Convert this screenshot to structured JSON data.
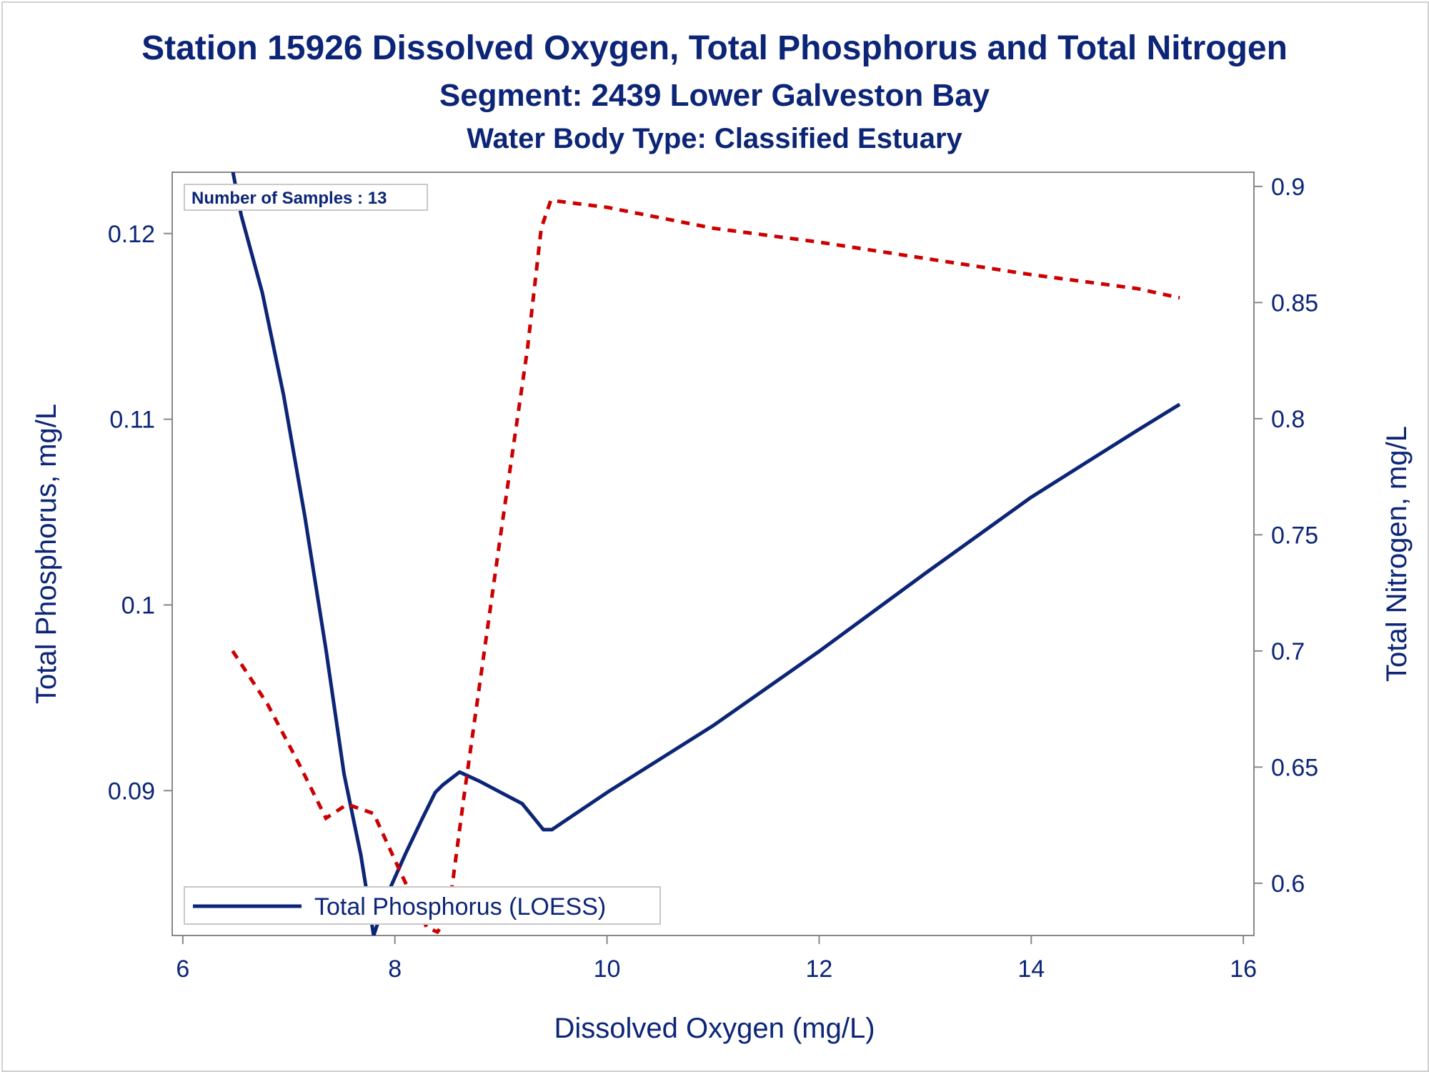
{
  "titles": {
    "line1": "Station 15926  Dissolved Oxygen, Total Phosphorus and Total Nitrogen",
    "line2": "Segment: 2439  Lower Galveston Bay",
    "line3": "Water Body Type: Classified Estuary"
  },
  "inset_label": "Number of Samples : 13",
  "colors": {
    "phosphorus": "#0c2577",
    "nitrogen": "#cc0000",
    "axis": "#888888",
    "text": "#0c2577"
  },
  "chart_data": {
    "type": "line",
    "xlabel": "Dissolved Oxygen (mg/L)",
    "ylabel": "Total Phosphorus, mg/L",
    "y2label": "Total Nitrogen, mg/L",
    "xlim": [
      5.9,
      16.1
    ],
    "ylim": [
      0.0822,
      0.1233
    ],
    "y2lim": [
      0.5775,
      0.9061
    ],
    "xticks": [
      6,
      8,
      10,
      12,
      14,
      16
    ],
    "yticks": [
      0.09,
      0.1,
      0.11,
      0.12
    ],
    "y2ticks": [
      0.6,
      0.65,
      0.7,
      0.75,
      0.8,
      0.85,
      0.9
    ],
    "xtick_labels": [
      "6",
      "8",
      "10",
      "12",
      "14",
      "16"
    ],
    "ytick_labels": [
      "0.09",
      "0.1",
      "0.11",
      "0.12"
    ],
    "y2tick_labels": [
      "0.6",
      "0.65",
      "0.7",
      "0.75",
      "0.8",
      "0.85",
      "0.9"
    ],
    "grid": false,
    "legend_position": "bottom-left",
    "series": [
      {
        "name": "Total Phosphorus (LOESS)",
        "axis": "left",
        "style": "solid",
        "points": [
          [
            6.47,
            0.1234
          ],
          [
            6.55,
            0.121
          ],
          [
            6.75,
            0.1168
          ],
          [
            6.95,
            0.1113
          ],
          [
            7.15,
            0.1048
          ],
          [
            7.35,
            0.0976
          ],
          [
            7.52,
            0.0909
          ],
          [
            7.68,
            0.0865
          ],
          [
            7.8,
            0.0822
          ],
          [
            7.92,
            0.0843
          ],
          [
            8.1,
            0.0866
          ],
          [
            8.25,
            0.0884
          ],
          [
            8.38,
            0.0899
          ],
          [
            8.45,
            0.0903
          ],
          [
            8.61,
            0.091
          ],
          [
            8.8,
            0.0905
          ],
          [
            9.0,
            0.0899
          ],
          [
            9.2,
            0.0893
          ],
          [
            9.3,
            0.0886
          ],
          [
            9.4,
            0.0879
          ],
          [
            9.48,
            0.0879
          ],
          [
            10.0,
            0.0899
          ],
          [
            11.0,
            0.0935
          ],
          [
            12.0,
            0.0975
          ],
          [
            13.0,
            0.1017
          ],
          [
            14.0,
            0.1058
          ],
          [
            15.0,
            0.1094
          ],
          [
            15.4,
            0.1108
          ]
        ]
      },
      {
        "name": "Total Nitrogen",
        "axis": "right",
        "style": "dashed",
        "points": [
          [
            6.47,
            0.7
          ],
          [
            6.8,
            0.677
          ],
          [
            7.1,
            0.651
          ],
          [
            7.35,
            0.628
          ],
          [
            7.55,
            0.634
          ],
          [
            7.8,
            0.63
          ],
          [
            8.05,
            0.605
          ],
          [
            8.3,
            0.581
          ],
          [
            8.4,
            0.579
          ],
          [
            8.5,
            0.585
          ],
          [
            8.65,
            0.637
          ],
          [
            9.0,
            0.751
          ],
          [
            9.25,
            0.83
          ],
          [
            9.38,
            0.882
          ],
          [
            9.47,
            0.894
          ],
          [
            10.0,
            0.891
          ],
          [
            11.0,
            0.882
          ],
          [
            12.0,
            0.876
          ],
          [
            13.0,
            0.869
          ],
          [
            14.0,
            0.862
          ],
          [
            15.0,
            0.856
          ],
          [
            15.4,
            0.852
          ]
        ]
      }
    ]
  }
}
